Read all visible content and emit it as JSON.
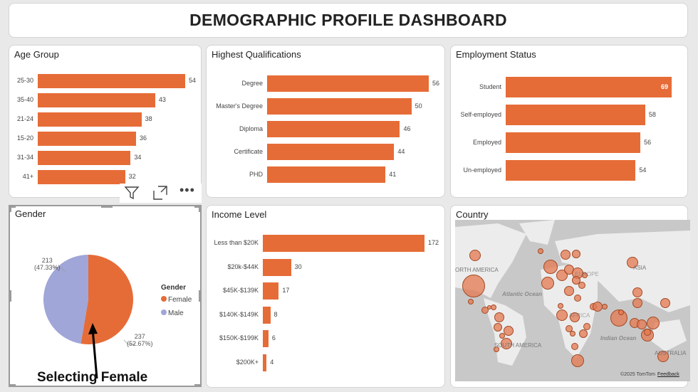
{
  "header": {
    "title": "DEMOGRAPHIC PROFILE DASHBOARD"
  },
  "colors": {
    "bar": "#e66c37",
    "female": "#e66c37",
    "male": "#a0a6d8"
  },
  "age": {
    "title": "Age Group",
    "categories": [
      "25-30",
      "35-40",
      "21-24",
      "15-20",
      "31-34",
      "41+"
    ],
    "values": [
      54,
      43,
      38,
      36,
      34,
      32
    ]
  },
  "qual": {
    "title": "Highest Qualifications",
    "categories": [
      "Degree",
      "Master's Degree",
      "Diploma",
      "Certificate",
      "PHD"
    ],
    "values": [
      56,
      50,
      46,
      44,
      41
    ]
  },
  "emp": {
    "title": "Employment Status",
    "categories": [
      "Student",
      "Self-employed",
      "Employed",
      "Un-employed"
    ],
    "values": [
      69,
      58,
      56,
      54
    ]
  },
  "income": {
    "title": "Income Level",
    "categories": [
      "Less than $20K",
      "$20k-$44K",
      "$45K-$139K",
      "$140K-$149K",
      "$150K-$199K",
      "$200K+"
    ],
    "values": [
      172,
      30,
      17,
      8,
      6,
      4
    ]
  },
  "gender": {
    "title": "Gender",
    "legend_title": "Gender",
    "slices": [
      {
        "name": "Female",
        "value": 237,
        "pct": "(52.67%)"
      },
      {
        "name": "Male",
        "value": 213,
        "pct": "(47.33%)"
      }
    ],
    "annotation": "Selecting Female"
  },
  "visual_toolbar": {
    "filter_icon": "filter-icon",
    "focus_icon": "focus-mode-icon",
    "more_icon": "more-options-icon"
  },
  "country": {
    "title": "Country",
    "labels": {
      "na": "ORTH AMERICA",
      "sa": "SOUTH AMERICA",
      "asia": "ASIA",
      "aus": "AUSTRALIA",
      "europe": "EUROPE",
      "africa": "AFRICA",
      "atlantic": "Atlantic Ocean",
      "indian": "Indian Ocean"
    },
    "attribution": "©2025 TomTom",
    "feedback": "Feedback"
  }
}
